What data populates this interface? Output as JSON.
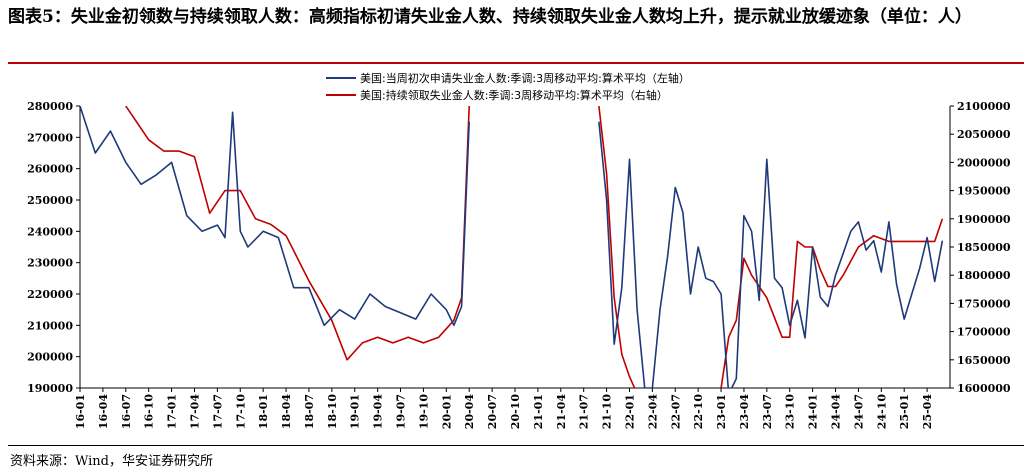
{
  "header": {
    "title": "图表5：失业金初领数与持续领取人数：高频指标初请失业金人数、持续领取失业金人数均上升，提示就业放缓迹象（单位：人）"
  },
  "footer": {
    "source": "资料来源：Wind，华安证券研究所"
  },
  "colors": {
    "left_series": "#1f3a7a",
    "right_series": "#c00000",
    "rule": "#c00000"
  },
  "chart_data": {
    "type": "line",
    "title": "",
    "legend_position": "top",
    "grid": false,
    "x_labels": [
      "16-01",
      "16-04",
      "16-07",
      "16-10",
      "17-01",
      "17-04",
      "17-07",
      "17-10",
      "18-01",
      "18-04",
      "18-07",
      "18-10",
      "19-01",
      "19-04",
      "19-07",
      "19-10",
      "20-01",
      "20-04",
      "20-07",
      "20-10",
      "21-01",
      "21-04",
      "21-07",
      "21-10",
      "22-01",
      "22-04",
      "22-07",
      "22-10",
      "23-01",
      "23-04",
      "23-07",
      "23-10",
      "24-01",
      "24-04",
      "24-07",
      "24-10",
      "25-01",
      "25-04"
    ],
    "y_left": {
      "min": 190000,
      "max": 280000,
      "step": 10000
    },
    "y_right": {
      "min": 1600000,
      "max": 2100000,
      "step": 50000
    },
    "series": [
      {
        "name": "美国:当周初次申请失业金人数:季调:3周移动平均:算术平均（左轴）",
        "axis": "left",
        "x": [
          "2016-01",
          "2016-03",
          "2016-05",
          "2016-07",
          "2016-09",
          "2016-11",
          "2017-01",
          "2017-03",
          "2017-05",
          "2017-07",
          "2017-08",
          "2017-09",
          "2017-10",
          "2017-11",
          "2018-01",
          "2018-03",
          "2018-05",
          "2018-07",
          "2018-09",
          "2018-11",
          "2019-01",
          "2019-03",
          "2019-05",
          "2019-07",
          "2019-09",
          "2019-11",
          "2020-01",
          "2020-02",
          "2020-03",
          "2020-04",
          "2021-09",
          "2021-10",
          "2021-11",
          "2021-12",
          "2022-01",
          "2022-02",
          "2022-03",
          "2022-04",
          "2022-05",
          "2022-06",
          "2022-07",
          "2022-08",
          "2022-09",
          "2022-10",
          "2022-11",
          "2022-12",
          "2023-01",
          "2023-02",
          "2023-03",
          "2023-04",
          "2023-05",
          "2023-06",
          "2023-07",
          "2023-08",
          "2023-09",
          "2023-10",
          "2023-11",
          "2023-12",
          "2024-01",
          "2024-02",
          "2024-03",
          "2024-04",
          "2024-05",
          "2024-06",
          "2024-07",
          "2024-08",
          "2024-09",
          "2024-10",
          "2024-11",
          "2024-12",
          "2025-01",
          "2025-02",
          "2025-03",
          "2025-04",
          "2025-05",
          "2025-06"
        ],
        "values": [
          280000,
          265000,
          272000,
          262000,
          255000,
          258000,
          262000,
          245000,
          240000,
          242000,
          238000,
          278000,
          240000,
          235000,
          240000,
          238000,
          222000,
          222000,
          210000,
          215000,
          212000,
          220000,
          216000,
          214000,
          212000,
          220000,
          215000,
          210000,
          216000,
          275000,
          275000,
          250000,
          204000,
          222000,
          263000,
          215000,
          190000,
          190000,
          215000,
          232000,
          254000,
          246000,
          220000,
          235000,
          225000,
          224000,
          220000,
          188000,
          193000,
          245000,
          240000,
          218000,
          263000,
          225000,
          222000,
          210000,
          218000,
          206000,
          235000,
          219000,
          216000,
          226000,
          233000,
          240000,
          243000,
          234000,
          237000,
          227000,
          243000,
          223000,
          212000,
          220000,
          228000,
          238000,
          224000,
          237000
        ]
      },
      {
        "name": "美国:持续领取失业金人数:季调:3周移动平均:算术平均（右轴）",
        "axis": "right",
        "x": [
          "2016-07",
          "2016-10",
          "2016-12",
          "2017-02",
          "2017-04",
          "2017-06",
          "2017-08",
          "2017-10",
          "2017-12",
          "2018-02",
          "2018-04",
          "2018-07",
          "2018-10",
          "2018-12",
          "2019-02",
          "2019-04",
          "2019-06",
          "2019-08",
          "2019-10",
          "2019-12",
          "2020-02",
          "2020-03",
          "2020-04",
          "2021-09",
          "2021-10",
          "2021-11",
          "2021-12",
          "2022-01",
          "2022-02",
          "2022-03",
          "2023-01",
          "2023-02",
          "2023-03",
          "2023-04",
          "2023-05",
          "2023-07",
          "2023-09",
          "2023-10",
          "2023-11",
          "2023-12",
          "2024-01",
          "2024-02",
          "2024-03",
          "2024-04",
          "2024-05",
          "2024-07",
          "2024-09",
          "2024-11",
          "2025-01",
          "2025-03",
          "2025-05",
          "2025-06"
        ],
        "values": [
          2100000,
          2040000,
          2020000,
          2020000,
          2010000,
          1910000,
          1950000,
          1950000,
          1900000,
          1890000,
          1870000,
          1790000,
          1720000,
          1650000,
          1680000,
          1690000,
          1680000,
          1690000,
          1680000,
          1690000,
          1720000,
          1760000,
          2100000,
          2100000,
          1980000,
          1760000,
          1660000,
          1620000,
          1590000,
          1590000,
          1600000,
          1690000,
          1720000,
          1830000,
          1800000,
          1760000,
          1690000,
          1690000,
          1860000,
          1850000,
          1850000,
          1810000,
          1780000,
          1780000,
          1800000,
          1850000,
          1870000,
          1860000,
          1860000,
          1860000,
          1860000,
          1900000
        ]
      }
    ]
  }
}
